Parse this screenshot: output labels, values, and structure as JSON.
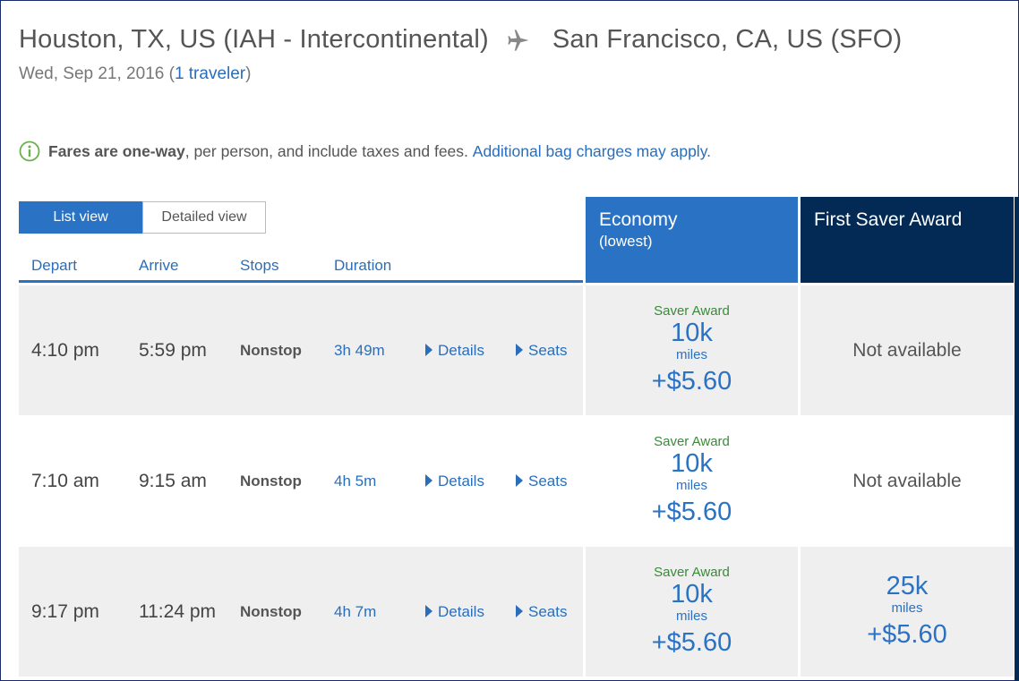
{
  "header": {
    "origin": "Houston, TX, US (IAH - Intercontinental)",
    "destination": "San Francisco, CA, US (SFO)",
    "date": "Wed, Sep 21, 2016",
    "travelers": "1 traveler"
  },
  "notice": {
    "bold": "Fares are one-way",
    "text": ", per person, and include taxes and fees.",
    "link": "Additional bag charges may apply."
  },
  "view_toggle": {
    "list": "List view",
    "detailed": "Detailed view"
  },
  "columns": {
    "depart": "Depart",
    "arrive": "Arrive",
    "stops": "Stops",
    "duration": "Duration"
  },
  "cabins": {
    "economy": {
      "title": "Economy",
      "subtitle": "(lowest)"
    },
    "first": {
      "title": "First Saver Award"
    }
  },
  "flights": [
    {
      "depart": "4:10 pm",
      "arrive": "5:59 pm",
      "stops": "Nonstop",
      "duration": "3h 49m",
      "details": "Details",
      "seats": "Seats",
      "economy": {
        "label": "Saver Award",
        "miles": "10k",
        "miles_label": "miles",
        "tax": "+$5.60"
      },
      "first": {
        "status": "Not available"
      }
    },
    {
      "depart": "7:10 am",
      "arrive": "9:15 am",
      "stops": "Nonstop",
      "duration": "4h 5m",
      "details": "Details",
      "seats": "Seats",
      "economy": {
        "label": "Saver Award",
        "miles": "10k",
        "miles_label": "miles",
        "tax": "+$5.60"
      },
      "first": {
        "status": "Not available"
      }
    },
    {
      "depart": "9:17 pm",
      "arrive": "11:24 pm",
      "stops": "Nonstop",
      "duration": "4h 7m",
      "details": "Details",
      "seats": "Seats",
      "economy": {
        "label": "Saver Award",
        "miles": "10k",
        "miles_label": "miles",
        "tax": "+$5.60"
      },
      "first": {
        "miles": "25k",
        "miles_label": "miles",
        "tax": "+$5.60"
      }
    }
  ],
  "colors": {
    "accent": "#2a72c4",
    "first_header": "#022a54",
    "link": "#2a6ebb",
    "saver_green": "#3a8a3a",
    "row_alt": "#efefef"
  }
}
